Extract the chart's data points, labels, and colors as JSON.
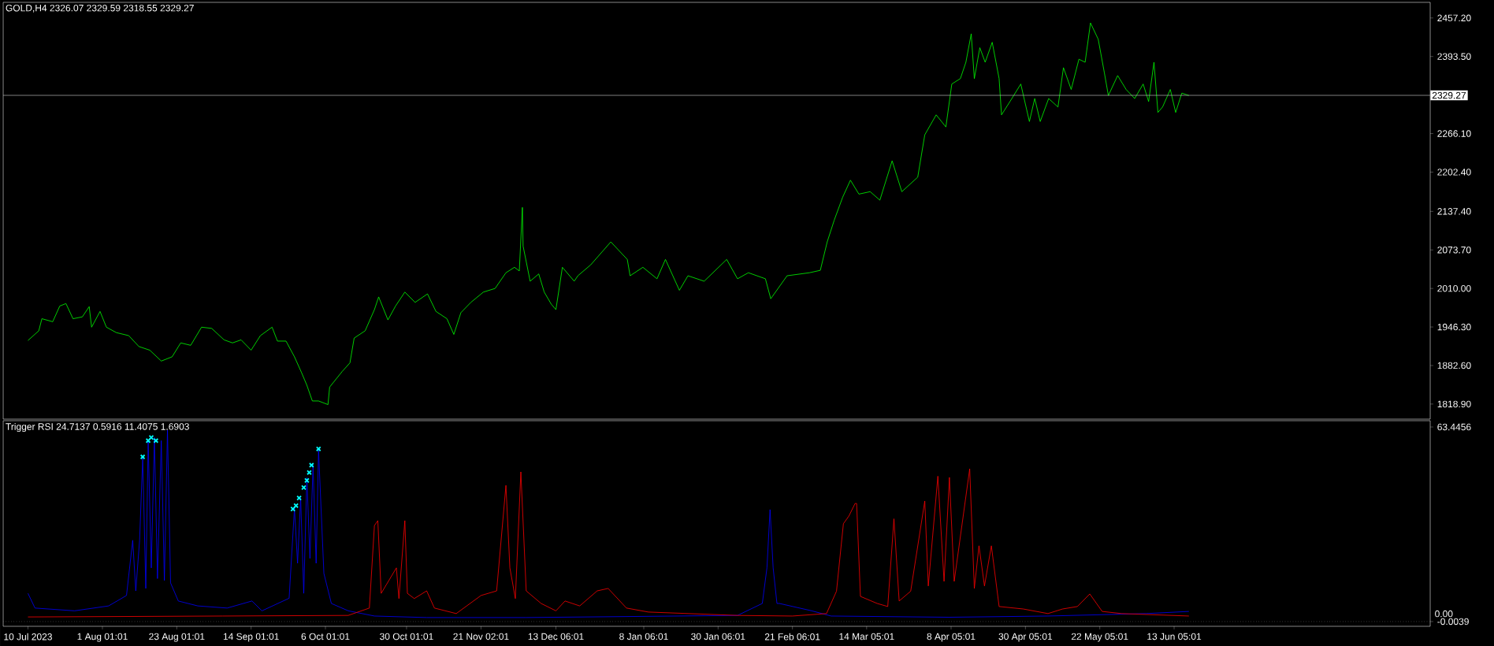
{
  "chart_data": [
    {
      "type": "line",
      "title": "GOLD,H4  2326.07 2329.59 2318.55 2329.27",
      "color": "#00ff00",
      "x": [
        "2023-07-10T00:00",
        "2023-07-13T05:00",
        "2023-07-14T03:00",
        "2023-07-17T08:00",
        "2023-07-19T10:00",
        "2023-07-21T06:00",
        "2023-07-23T08:00",
        "2023-07-26T02:00",
        "2023-07-28T03:00",
        "2023-07-28T20:00",
        "2023-07-31T08:00",
        "2023-08-02T05:00",
        "2023-08-05T04:00",
        "2023-08-08T20:00",
        "2023-08-11T20:00",
        "2023-08-15T01:00",
        "2023-08-18T11:00",
        "2023-08-21T16:00",
        "2023-08-24T05:00",
        "2023-08-27T04:00",
        "2023-08-30T09:00",
        "2023-09-02T09:00",
        "2023-09-06T01:00",
        "2023-09-08T13:00",
        "2023-09-11T02:00",
        "2023-09-14T01:00",
        "2023-09-16T19:00",
        "2023-09-20T06:00",
        "2023-09-21T20:00",
        "2023-09-24T09:00",
        "2023-09-26T21:00",
        "2023-09-28T23:00",
        "2023-09-30T13:00",
        "2023-10-02T04:00",
        "2023-10-04T00:00",
        "2023-10-06T19:00",
        "2023-10-07T07:00",
        "2023-10-11T01:00",
        "2023-10-13T07:00",
        "2023-10-14T13:00",
        "2023-10-17T19:00",
        "2023-10-20T13:00",
        "2023-10-21T19:00",
        "2023-10-24T13:00",
        "2023-10-26T19:00",
        "2023-10-29T13:00",
        "2023-11-01T14:00",
        "2023-11-05T06:00",
        "2023-11-07T18:00",
        "2023-11-11T00:00",
        "2023-11-13T01:00",
        "2023-11-15T03:00",
        "2023-11-18T02:00",
        "2023-11-21T19:00",
        "2023-11-25T06:00",
        "2023-11-28T11:00",
        "2023-12-01T00:00",
        "2023-12-02T10:00",
        "2023-12-03T08:00",
        "2023-12-03T13:00",
        "2023-12-05T15:00",
        "2023-12-08T04:00",
        "2023-12-09T19:00",
        "2023-12-11T21:00",
        "2023-12-13T06:00",
        "2023-12-15T04:00",
        "2023-12-18T16:00",
        "2023-12-19T18:00",
        "2023-12-23T13:00",
        "2023-12-29T12:00",
        "2024-01-03T09:00",
        "2024-01-04T05:00",
        "2024-01-08T00:00",
        "2024-01-12T04:00",
        "2024-01-14T16:00",
        "2024-01-18T19:00",
        "2024-01-21T08:00",
        "2024-01-26T03:00",
        "2024-02-01T19:00",
        "2024-02-05T00:00",
        "2024-02-08T05:00",
        "2024-02-13T06:00",
        "2024-02-14T20:00",
        "2024-02-19T16:00",
        "2024-02-26T07:00",
        "2024-02-29T12:00",
        "2024-03-02T13:00",
        "2024-03-04T15:00",
        "2024-03-07T03:00",
        "2024-03-09T10:00",
        "2024-03-11T22:00",
        "2024-03-15T06:00",
        "2024-03-18T03:00",
        "2024-03-21T18:00",
        "2024-03-24T15:00",
        "2024-03-29T08:00",
        "2024-03-31T10:00",
        "2024-04-03T19:00",
        "2024-04-06T16:00",
        "2024-04-08T10:00",
        "2024-04-10T23:00",
        "2024-04-12T14:00",
        "2024-04-14T04:00",
        "2024-04-15T02:00",
        "2024-04-16T17:00",
        "2024-04-18T07:00",
        "2024-04-20T09:00",
        "2024-04-22T10:00",
        "2024-04-23T03:00",
        "2024-04-25T15:00",
        "2024-04-28T20:00",
        "2024-05-01T09:00",
        "2024-05-02T23:00",
        "2024-05-04T14:00",
        "2024-05-07T02:00",
        "2024-05-09T20:00",
        "2024-05-11T11:00",
        "2024-05-13T18:00",
        "2024-05-16T01:00",
        "2024-05-17T21:00",
        "2024-05-19T11:00",
        "2024-05-21T18:00",
        "2024-05-23T14:00",
        "2024-05-24T18:00",
        "2024-05-27T12:00",
        "2024-05-30T00:00",
        "2024-06-01T13:00",
        "2024-06-04T01:00",
        "2024-06-05T16:00",
        "2024-06-07T06:00",
        "2024-06-08T10:00",
        "2024-06-09T19:00",
        "2024-06-12T02:00",
        "2024-06-13T16:00",
        "2024-06-15T12:00",
        "2024-06-17T14:00"
      ],
      "values": [
        1924,
        1940,
        1960,
        1955,
        1981,
        1985,
        1960,
        1963,
        1980,
        1946,
        1972,
        1946,
        1937,
        1932,
        1914,
        1908,
        1890,
        1897,
        1920,
        1916,
        1946,
        1944,
        1925,
        1920,
        1925,
        1908,
        1932,
        1946,
        1923,
        1923,
        1897,
        1871,
        1850,
        1824,
        1824,
        1818,
        1847,
        1873,
        1887,
        1928,
        1940,
        1975,
        1996,
        1958,
        1981,
        2004,
        1987,
        2001,
        1972,
        1960,
        1934,
        1970,
        1987,
        2004,
        2010,
        2036,
        2045,
        2039,
        2144,
        2080,
        2022,
        2034,
        2004,
        1984,
        1975,
        2045,
        2022,
        2031,
        2049,
        2087,
        2058,
        2031,
        2045,
        2026,
        2058,
        2007,
        2031,
        2022,
        2058,
        2026,
        2036,
        2026,
        1993,
        2031,
        2036,
        2040,
        2087,
        2123,
        2161,
        2189,
        2166,
        2170,
        2156,
        2221,
        2170,
        2194,
        2264,
        2297,
        2277,
        2348,
        2357,
        2384,
        2431,
        2357,
        2408,
        2384,
        2417,
        2357,
        2297,
        2319,
        2348,
        2286,
        2324,
        2286,
        2324,
        2310,
        2375,
        2339,
        2389,
        2384,
        2449,
        2422,
        2366,
        2329,
        2362,
        2339,
        2324,
        2348,
        2319,
        2384,
        2301,
        2310,
        2339,
        2301,
        2333,
        2329
      ],
      "xlim": [
        "2023-07-02T16:00",
        "2024-08-28T00:00"
      ],
      "ylim": [
        1794,
        2483
      ],
      "yticks": [
        {
          "value": 2457.2,
          "label": "2457.20"
        },
        {
          "value": 2393.5,
          "label": "2393.50"
        },
        {
          "value": 2266.1,
          "label": "2266.10"
        },
        {
          "value": 2202.4,
          "label": "2202.40"
        },
        {
          "value": 2137.4,
          "label": "2137.40"
        },
        {
          "value": 2073.7,
          "label": "2073.70"
        },
        {
          "value": 2010,
          "label": "2010.00"
        },
        {
          "value": 1946.3,
          "label": "1946.30"
        },
        {
          "value": 1882.6,
          "label": "1882.60"
        },
        {
          "value": 1818.9,
          "label": "1818.90"
        }
      ],
      "ref_lines": [
        {
          "axis": "y",
          "value": 2329.27,
          "label": "2329.27",
          "color": "#c0c0c0"
        }
      ],
      "tick_labels": "y"
    },
    {
      "type": "line",
      "title": "Trigger RSI 24.7137 0.5916 11.4075 1.6903",
      "series": [
        {
          "color": "#0000ff",
          "x": [
            "2023-07-10T00:00",
            "2023-07-12T02:00",
            "2023-07-23T19:00",
            "2023-08-02T21:00",
            "2023-08-08T04:00",
            "2023-08-10T00:00",
            "2023-08-10T22:00",
            "2023-08-12T01:00",
            "2023-08-12T23:00",
            "2023-08-13T21:00",
            "2023-08-14T14:00",
            "2023-08-15T12:00",
            "2023-08-16T10:00",
            "2023-08-17T08:00",
            "2023-08-18T11:00",
            "2023-08-19T09:00",
            "2023-08-20T07:00",
            "2023-08-21T05:00",
            "2023-08-23T12:00",
            "2023-08-29T06:00",
            "2023-09-06T23:00",
            "2023-09-14T07:00",
            "2023-09-17T06:00",
            "2023-09-25T07:00",
            "2023-09-26T21:00",
            "2023-09-27T19:00",
            "2023-09-28T17:00",
            "2023-09-29T15:00",
            "2023-09-30T13:00",
            "2023-10-01T11:00",
            "2023-10-02T09:00",
            "2023-10-03T07:00",
            "2023-10-04T00:00",
            "2023-10-05T14:00",
            "2023-10-07T19:00",
            "2023-10-12T19:00",
            "2023-10-20T13:00",
            "2023-11-05T00:00",
            "2023-12-04T11:00",
            "2024-02-05T00:00",
            "2024-02-12T08:00",
            "2024-02-13T17:00",
            "2024-02-14T15:00",
            "2024-02-15T13:00",
            "2024-02-16T16:00",
            "2024-02-17T09:00",
            "2024-02-26T23:00",
            "2024-03-03T17:00",
            "2024-04-07T17:00",
            "2024-05-06T21:00",
            "2024-06-04T23:00",
            "2024-06-17T14:00"
          ],
          "values": [
            9.2,
            4.4,
            3.5,
            5.1,
            8.5,
            26.5,
            10,
            26.5,
            53.4,
            10.8,
            59,
            17.5,
            60,
            14,
            59,
            13.4,
            62.4,
            12.6,
            6.7,
            5.1,
            4.4,
            6.7,
            3.5,
            7.6,
            37,
            19,
            40.3,
            9.2,
            46.9,
            20.6,
            51,
            19,
            55.9,
            15.7,
            5.9,
            3.5,
            1.8,
            1.3,
            1.3,
            2,
            5.9,
            17.5,
            36.5,
            17.5,
            5.9,
            5.9,
            3.5,
            1.8,
            1.4,
            1.8,
            2.6,
            3.3
          ]
        },
        {
          "color": "#ff0000",
          "x": [
            "2023-07-10T00:00",
            "2023-09-05T14:00",
            "2023-10-12T19:00",
            "2023-10-19T01:00",
            "2023-10-20T13:00",
            "2023-10-21T13:00",
            "2023-10-22T13:00",
            "2023-10-27T01:00",
            "2023-10-27T19:00",
            "2023-10-29T13:00",
            "2023-10-30T07:00",
            "2023-11-01T08:00",
            "2023-11-05T00:00",
            "2023-11-07T07:00",
            "2023-11-13T18:00",
            "2023-11-21T02:00",
            "2023-11-25T17:00",
            "2023-11-28T11:00",
            "2023-11-29T15:00",
            "2023-12-01T06:00",
            "2023-12-02T21:00",
            "2023-12-04T11:00",
            "2023-12-08T21:00",
            "2023-12-13T06:00",
            "2023-12-15T23:00",
            "2023-12-20T07:00",
            "2023-12-25T11:00",
            "2023-12-28T17:00",
            "2024-01-03T03:00",
            "2024-01-09T15:00",
            "2024-02-05T00:00",
            "2024-02-21T06:00",
            "2024-03-02T08:00",
            "2024-03-05T07:00",
            "2024-03-07T08:00",
            "2024-03-08T23:00",
            "2024-03-10T19:00",
            "2024-03-11T06:00",
            "2024-03-12T09:00",
            "2024-03-17T08:00",
            "2024-03-20T11:00",
            "2024-03-22T07:00",
            "2024-03-23T20:00",
            "2024-03-27T06:00",
            "2024-03-31T10:00",
            "2024-04-01T11:00",
            "2024-04-04T07:00",
            "2024-04-06T03:00",
            "2024-04-07T17:00",
            "2024-04-09T03:00",
            "2024-04-13T17:00",
            "2024-04-15T02:00",
            "2024-04-16T11:00",
            "2024-04-18T02:00",
            "2024-04-20T03:00",
            "2024-04-22T10:00",
            "2024-04-29T13:00",
            "2024-05-06T21:00",
            "2024-05-11T05:00",
            "2024-05-15T14:00",
            "2024-05-19T06:00",
            "2024-05-22T22:00",
            "2024-05-28T15:00",
            "2024-06-17T14:00"
          ],
          "values": [
            1.5,
            1.8,
            2,
            4.4,
            31.3,
            32.9,
            9.2,
            17.5,
            7.5,
            32.9,
            9.2,
            7.5,
            10,
            4.4,
            2.6,
            8.5,
            10,
            44.4,
            17.5,
            7.5,
            48.8,
            10,
            5.9,
            3.5,
            6.7,
            5.1,
            10,
            10.8,
            4.4,
            3.1,
            2,
            1.8,
            2.6,
            9.9,
            31.9,
            34.4,
            38.5,
            38.5,
            8.2,
            5.9,
            4.9,
            33.5,
            6.7,
            9.9,
            39.3,
            11.6,
            47.4,
            13.1,
            47,
            13.1,
            49.8,
            10.8,
            24.7,
            11.6,
            24.7,
            4.9,
            4.1,
            2.6,
            4.1,
            4.9,
            9,
            3.3,
            2.6,
            1.8
          ]
        },
        {
          "type": "scatter",
          "marker": "cross",
          "color": "#00ffff",
          "x": [
            "2023-08-12T23:00",
            "2023-08-14T14:00",
            "2023-08-15T12:00",
            "2023-08-16T21:00",
            "2023-09-26T10:00",
            "2023-09-27T08:00",
            "2023-09-28T06:00",
            "2023-09-29T15:00",
            "2023-09-30T13:00",
            "2023-10-01T06:00",
            "2023-10-01T22:00",
            "2023-10-04T00:00"
          ],
          "values": [
            53.7,
            59,
            60,
            59,
            36.7,
            37.8,
            40.3,
            43.7,
            46,
            48.6,
            51,
            56.3
          ]
        }
      ],
      "xlim": [
        "2023-07-02T16:00",
        "2024-08-28T00:00"
      ],
      "ylim": [
        -1.55,
        65.5
      ],
      "xticks": [
        {
          "value": "2023-07-10T00:00",
          "label": "10 Jul 2023"
        },
        {
          "value": "2023-08-01T01:01",
          "label": "1 Aug 01:01"
        },
        {
          "value": "2023-08-23T01:01",
          "label": "23 Aug 01:01"
        },
        {
          "value": "2023-09-14T01:01",
          "label": "14 Sep 01:01"
        },
        {
          "value": "2023-10-06T01:01",
          "label": "6 Oct 01:01"
        },
        {
          "value": "2023-10-30T01:01",
          "label": "30 Oct 01:01"
        },
        {
          "value": "2023-11-21T02:01",
          "label": "21 Nov 02:01"
        },
        {
          "value": "2023-12-13T06:01",
          "label": "13 Dec 06:01"
        },
        {
          "value": "2024-01-08T06:01",
          "label": "8 Jan 06:01"
        },
        {
          "value": "2024-01-30T06:01",
          "label": "30 Jan 06:01"
        },
        {
          "value": "2024-02-21T06:01",
          "label": "21 Feb 06:01"
        },
        {
          "value": "2024-03-14T05:01",
          "label": "14 Mar 05:01"
        },
        {
          "value": "2024-04-08T05:01",
          "label": "8 Apr 05:01"
        },
        {
          "value": "2024-04-30T05:01",
          "label": "30 Apr 05:01"
        },
        {
          "value": "2024-05-22T05:01",
          "label": "22 May 05:01"
        },
        {
          "value": "2024-06-13T05:01",
          "label": "13 Jun 05:01"
        }
      ],
      "yticks": [
        {
          "value": 63.4456,
          "label": "63.4456"
        },
        {
          "value": -0.0039,
          "label": "-0.0039"
        }
      ],
      "ref_lines": [
        {
          "axis": "y",
          "value": 0,
          "label": "0.00",
          "color": "#808080",
          "line_style": "dotted"
        }
      ]
    }
  ]
}
